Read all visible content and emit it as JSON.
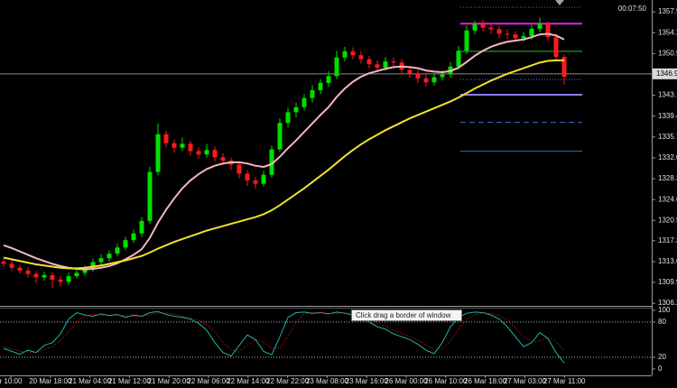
{
  "chart_data": [
    {
      "type": "candlestick",
      "clock": "00:07:50",
      "open": [
        1313.6,
        1313.2,
        1312.5,
        1312.0,
        1311.4,
        1310.8,
        1311.2,
        1310.4,
        1310.0,
        1311.0,
        1311.6,
        1312.3,
        1313.5,
        1314.2,
        1315.0,
        1316.1,
        1317.4,
        1318.6,
        1320.8,
        1329.5,
        1336.2,
        1334.6,
        1333.8,
        1334.5,
        1333.2,
        1332.6,
        1333.4,
        1332.1,
        1331.5,
        1330.8,
        1329.2,
        1328.0,
        1327.4,
        1329.0,
        1333.5,
        1338.2,
        1340.1,
        1341.0,
        1342.6,
        1344.0,
        1345.3,
        1346.5,
        1349.8,
        1350.9,
        1350.2,
        1349.5,
        1348.6,
        1348.0,
        1349.1,
        1348.9,
        1347.6,
        1347.0,
        1346.1,
        1345.4,
        1346.3,
        1346.8,
        1348.2,
        1351.0,
        1354.6,
        1355.7,
        1355.1,
        1354.8,
        1354.0,
        1353.9,
        1353.2,
        1353.6,
        1354.9,
        1355.8,
        1353.4,
        1349.9
      ],
      "high": [
        1314.1,
        1313.8,
        1313.0,
        1312.6,
        1311.9,
        1311.8,
        1311.7,
        1311.0,
        1311.6,
        1312.2,
        1312.9,
        1314.1,
        1314.9,
        1315.6,
        1316.8,
        1318.0,
        1319.3,
        1321.5,
        1330.4,
        1338.1,
        1336.8,
        1335.3,
        1335.6,
        1335.0,
        1333.9,
        1334.5,
        1334.0,
        1332.8,
        1332.0,
        1331.4,
        1329.8,
        1328.6,
        1329.7,
        1334.2,
        1339.0,
        1340.9,
        1341.8,
        1343.3,
        1344.9,
        1346.0,
        1347.4,
        1351.0,
        1351.7,
        1351.6,
        1350.9,
        1350.1,
        1349.3,
        1349.9,
        1349.8,
        1349.5,
        1348.3,
        1347.6,
        1346.8,
        1347.0,
        1347.5,
        1349.0,
        1351.8,
        1355.5,
        1356.3,
        1356.5,
        1355.9,
        1355.4,
        1354.8,
        1354.5,
        1354.3,
        1355.6,
        1356.9,
        1356.2,
        1353.9,
        1350.3
      ],
      "low": [
        1312.7,
        1311.9,
        1311.5,
        1310.8,
        1309.8,
        1310.2,
        1308.9,
        1309.2,
        1309.5,
        1310.6,
        1311.1,
        1311.8,
        1313.0,
        1313.6,
        1314.5,
        1315.6,
        1316.9,
        1318.0,
        1320.3,
        1328.9,
        1333.9,
        1332.9,
        1333.2,
        1332.4,
        1331.8,
        1332.0,
        1331.3,
        1330.7,
        1329.9,
        1328.4,
        1327.0,
        1326.5,
        1326.9,
        1328.5,
        1333.0,
        1337.4,
        1339.2,
        1340.4,
        1341.8,
        1343.3,
        1344.6,
        1346.0,
        1349.1,
        1349.5,
        1348.7,
        1347.8,
        1347.2,
        1347.5,
        1348.1,
        1346.9,
        1346.2,
        1345.3,
        1344.6,
        1344.8,
        1345.7,
        1346.2,
        1347.7,
        1350.4,
        1353.9,
        1354.4,
        1354.0,
        1353.2,
        1353.1,
        1352.6,
        1352.7,
        1353.0,
        1354.3,
        1352.8,
        1349.2,
        1345.0
      ],
      "close": [
        1313.2,
        1312.5,
        1312.0,
        1311.4,
        1310.8,
        1311.2,
        1310.4,
        1310.0,
        1311.0,
        1311.6,
        1312.3,
        1313.5,
        1314.2,
        1315.0,
        1316.1,
        1317.4,
        1318.6,
        1320.8,
        1329.5,
        1336.2,
        1334.6,
        1333.8,
        1334.5,
        1333.2,
        1332.6,
        1333.4,
        1332.1,
        1331.5,
        1330.8,
        1329.2,
        1328.0,
        1327.4,
        1329.0,
        1333.5,
        1338.2,
        1340.1,
        1341.0,
        1342.6,
        1344.0,
        1345.3,
        1346.5,
        1349.8,
        1350.9,
        1350.2,
        1349.5,
        1348.6,
        1348.0,
        1349.1,
        1348.9,
        1347.6,
        1347.0,
        1346.1,
        1345.4,
        1346.3,
        1346.8,
        1348.2,
        1351.0,
        1354.6,
        1355.7,
        1355.1,
        1354.8,
        1354.0,
        1353.9,
        1353.2,
        1353.6,
        1354.9,
        1355.8,
        1353.4,
        1349.9,
        1346.4
      ],
      "up_color": "#00e000",
      "down_color": "#ff1a1a",
      "series": [
        {
          "color": "#f4b6c2",
          "values": [
            1316.5,
            1316.0,
            1315.4,
            1314.8,
            1314.2,
            1313.7,
            1313.2,
            1312.8,
            1312.5,
            1312.3,
            1312.2,
            1312.3,
            1312.5,
            1312.8,
            1313.3,
            1314.0,
            1314.8,
            1315.8,
            1317.8,
            1320.5,
            1322.8,
            1324.8,
            1326.6,
            1328.0,
            1329.1,
            1330.0,
            1330.6,
            1331.0,
            1331.2,
            1331.2,
            1331.0,
            1330.6,
            1330.4,
            1330.9,
            1332.2,
            1333.7,
            1335.1,
            1336.6,
            1338.1,
            1339.6,
            1341.0,
            1342.8,
            1344.3,
            1345.5,
            1346.4,
            1347.0,
            1347.4,
            1347.8,
            1348.1,
            1348.2,
            1348.1,
            1347.9,
            1347.5,
            1347.3,
            1347.2,
            1347.4,
            1348.0,
            1349.0,
            1350.1,
            1351.0,
            1351.7,
            1352.2,
            1352.6,
            1352.8,
            1353.0,
            1353.4,
            1353.9,
            1354.0,
            1353.7,
            1353.0
          ]
        },
        {
          "color": "#f0e030",
          "values": [
            1314.3,
            1314.0,
            1313.7,
            1313.4,
            1313.1,
            1312.9,
            1312.7,
            1312.5,
            1312.4,
            1312.4,
            1312.5,
            1312.7,
            1312.9,
            1313.2,
            1313.5,
            1313.8,
            1314.2,
            1314.6,
            1315.2,
            1315.9,
            1316.5,
            1317.1,
            1317.6,
            1318.1,
            1318.6,
            1319.1,
            1319.5,
            1319.9,
            1320.3,
            1320.7,
            1321.1,
            1321.5,
            1322.0,
            1322.7,
            1323.6,
            1324.6,
            1325.6,
            1326.6,
            1327.7,
            1328.8,
            1329.9,
            1331.1,
            1332.3,
            1333.4,
            1334.4,
            1335.3,
            1336.1,
            1336.9,
            1337.6,
            1338.3,
            1339.0,
            1339.6,
            1340.2,
            1340.8,
            1341.4,
            1342.0,
            1342.7,
            1343.5,
            1344.3,
            1345.0,
            1345.7,
            1346.3,
            1346.9,
            1347.4,
            1347.9,
            1348.4,
            1348.9,
            1349.2,
            1349.3,
            1349.3
          ]
        }
      ],
      "levels": [
        {
          "value": 1358.7,
          "color": "#c04040",
          "style": "dotted"
        },
        {
          "value": 1355.8,
          "color": "#e020e0",
          "style": "solid"
        },
        {
          "value": 1350.9,
          "color": "#20c020",
          "style": "thin"
        },
        {
          "value": 1345.9,
          "color": "#6a6af0",
          "style": "dotted"
        },
        {
          "value": 1343.2,
          "color": "#8a7cff",
          "style": "solid"
        },
        {
          "value": 1338.3,
          "color": "#3a70d0",
          "style": "dashed"
        },
        {
          "value": 1333.2,
          "color": "#2a60b0",
          "style": "thin"
        }
      ],
      "current_price": 1346.9,
      "ylim": [
        1305.9,
        1360.0
      ],
      "yticks": [
        1357.9,
        1354.2,
        1350.5,
        1343.1,
        1339.4,
        1335.7,
        {
          "value": 1332.0,
          "label": "1332.0"
        },
        1328.3,
        1324.6,
        1320.9,
        1317.3,
        1313.6,
        1309.9,
        1306.2
      ],
      "x_labels": [
        "r 10:00",
        "20 Mar 18:00",
        "21 Mar 04:00",
        "21 Mar 12:00",
        "21 Mar 20:00",
        "22 Mar 06:00",
        "22 Mar 14:00",
        "22 Mar 22:00",
        "23 Mar 08:00",
        "23 Mar 16:00",
        "26 Mar 00:00",
        "26 Mar 10:00",
        "26 Mar 18:00",
        "27 Mar 03:00",
        "27 Mar 11:00"
      ]
    },
    {
      "type": "line",
      "series": [
        {
          "color": "#20b2aa",
          "style": "solid",
          "values": [
            35,
            30,
            25,
            32,
            28,
            40,
            45,
            60,
            85,
            96,
            92,
            90,
            94,
            91,
            93,
            88,
            92,
            90,
            96,
            98,
            93,
            90,
            88,
            85,
            78,
            66,
            45,
            28,
            22,
            40,
            58,
            50,
            30,
            24,
            55,
            88,
            96,
            97,
            95,
            96,
            94,
            97,
            95,
            92,
            86,
            80,
            72,
            68,
            60,
            55,
            50,
            42,
            32,
            26,
            45,
            72,
            88,
            95,
            97,
            96,
            92,
            85,
            72,
            55,
            38,
            45,
            62,
            52,
            28,
            10
          ]
        },
        {
          "color": "#e02020",
          "style": "dotted",
          "values": [
            38,
            34,
            30,
            29,
            28,
            33,
            38,
            48,
            63,
            80,
            91,
            93,
            92,
            92,
            92,
            91,
            90,
            90,
            92,
            95,
            96,
            94,
            90,
            87,
            83,
            76,
            63,
            46,
            32,
            30,
            40,
            50,
            46,
            35,
            36,
            56,
            80,
            94,
            96,
            96,
            95,
            95,
            96,
            94,
            91,
            86,
            79,
            73,
            66,
            61,
            55,
            49,
            41,
            33,
            34,
            48,
            68,
            85,
            93,
            96,
            95,
            91,
            83,
            70,
            55,
            46,
            48,
            53,
            47,
            30
          ]
        }
      ],
      "levels": [
        80,
        20
      ],
      "ylim": [
        -11,
        103
      ],
      "yticks": [
        100,
        80,
        20,
        0
      ]
    }
  ],
  "tooltip": "Click  drag a border of window"
}
